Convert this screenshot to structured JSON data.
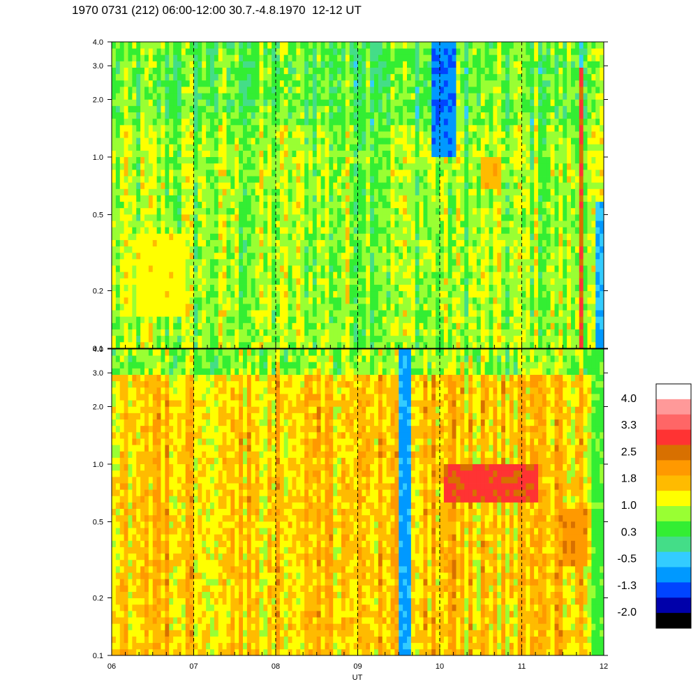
{
  "title": "1970 0731 (212) 06:00-12:00 30.7.-4.8.1970  12-12 UT",
  "chart_data": {
    "type": "heatmap",
    "title": "1970 0731 (212) 06:00-12:00 30.7.-4.8.1970  12-12 UT",
    "xlabel": "UT",
    "x_ticks": [
      "06",
      "07",
      "08",
      "09",
      "10",
      "11",
      "12"
    ],
    "xlim": [
      6,
      12
    ],
    "dashed_vertical_lines_at": [
      7,
      8,
      9,
      10,
      11
    ],
    "panels": [
      {
        "name": "upper",
        "y_scale": "log",
        "ylim": [
          0.1,
          4.0
        ],
        "y_ticks": [
          "0.1",
          "0.2",
          "0.5",
          "1.0",
          "2.0",
          "3.0",
          "4.0"
        ],
        "typical_value": 0.8,
        "features": [
          {
            "desc": "yellow patch",
            "x": [
              6.3,
              6.9
            ],
            "y": [
              0.15,
              0.4
            ],
            "value": 1.2
          },
          {
            "desc": "orange patch",
            "x": [
              10.5,
              10.75
            ],
            "y": [
              0.7,
              1.0
            ],
            "value": 1.6
          },
          {
            "desc": "low-value streaks",
            "x": [
              9.9,
              10.2
            ],
            "y": [
              1.0,
              4.0
            ],
            "value": -0.8
          },
          {
            "desc": "red streak",
            "x": [
              11.7,
              11.75
            ],
            "y": [
              0.1,
              3.0
            ],
            "value": 2.5
          },
          {
            "desc": "blue column",
            "x": [
              11.9,
              12.0
            ],
            "y": [
              0.1,
              0.6
            ],
            "value": -0.5
          }
        ]
      },
      {
        "name": "lower",
        "y_scale": "log",
        "ylim": [
          0.1,
          4.0
        ],
        "y_ticks": [
          "0.1",
          "0.2",
          "0.5",
          "1.0",
          "2.0",
          "3.0",
          "4.0"
        ],
        "typical_value": 1.5,
        "features": [
          {
            "desc": "blue trough",
            "x": [
              9.5,
              9.65
            ],
            "y": [
              0.1,
              4.0
            ],
            "value": -0.6
          },
          {
            "desc": "red band",
            "x": [
              10.05,
              11.2
            ],
            "y": [
              0.65,
              1.0
            ],
            "value": 2.6
          },
          {
            "desc": "brown patch",
            "x": [
              11.5,
              11.8
            ],
            "y": [
              0.3,
              0.6
            ],
            "value": 2.0
          },
          {
            "desc": "green edge",
            "x": [
              11.85,
              12.0
            ],
            "y": [
              0.1,
              4.0
            ],
            "value": 0.5
          }
        ]
      }
    ],
    "colorbar": {
      "labels": [
        "4.0",
        "3.3",
        "2.5",
        "1.8",
        "1.0",
        "0.3",
        "-0.5",
        "-1.3",
        "-2.0"
      ],
      "colors": [
        "#ffffff",
        "#ff9999",
        "#ff6666",
        "#ff3333",
        "#d87000",
        "#ff9900",
        "#ffbb00",
        "#ffff00",
        "#99ff33",
        "#33ee33",
        "#44dd88",
        "#33ccff",
        "#0099ff",
        "#0044ff",
        "#0000aa",
        "#000000"
      ]
    }
  }
}
